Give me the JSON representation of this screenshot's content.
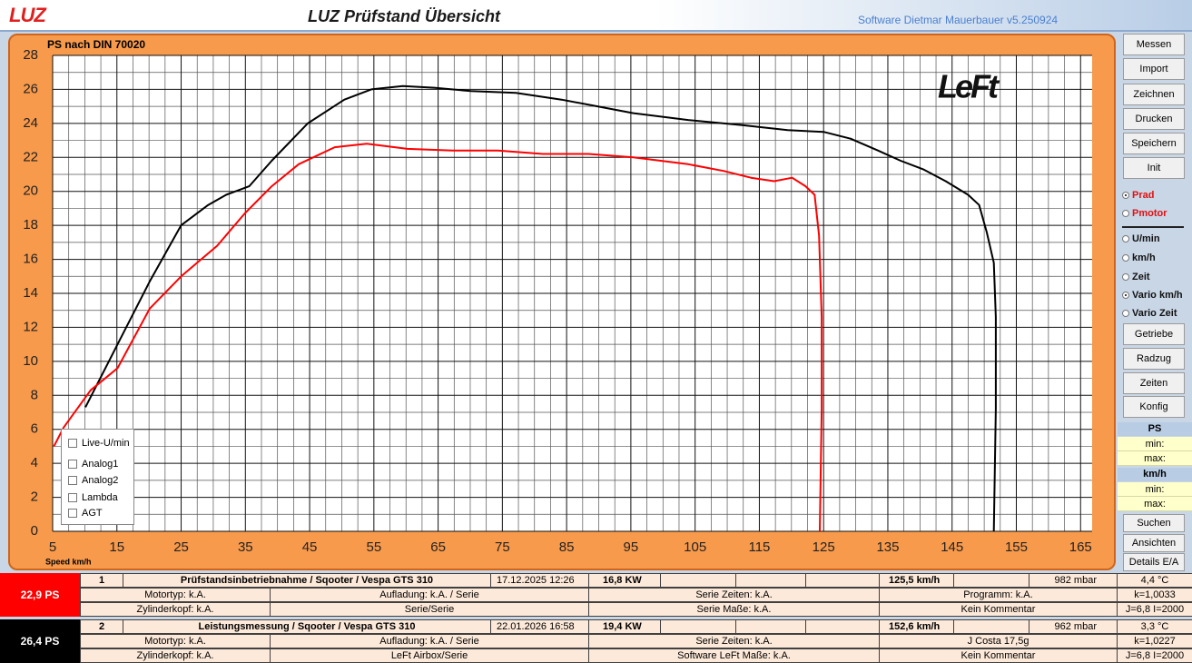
{
  "header": {
    "logo": "LUZ",
    "title": "LUZ Prüfstand  Übersicht",
    "software": "Software Dietmar Mauerbauer v5.250924"
  },
  "chart_data": {
    "type": "line",
    "title": "PS nach DIN 70020",
    "x_label": "Speed km/h",
    "watermark": "LeFt",
    "xlim": [
      5,
      166.8
    ],
    "xticks": [
      5,
      15,
      25,
      35,
      45,
      55,
      65,
      75,
      85,
      95,
      105,
      115,
      125,
      135,
      145,
      155,
      165
    ],
    "ylim": [
      0,
      28
    ],
    "yticks": [
      0,
      2,
      4,
      6,
      8,
      10,
      12,
      14,
      16,
      18,
      20,
      22,
      24,
      26,
      28
    ],
    "grid": true,
    "series": [
      {
        "color": "#000000",
        "x": [
          10.1,
          15.1,
          20.1,
          25,
          29.2,
          32,
          35.6,
          39.1,
          44.7,
          50.4,
          54.6,
          59.5,
          64.4,
          70.1,
          77.1,
          84.2,
          89.8,
          95.4,
          103.9,
          112.3,
          119.4,
          125,
          129.2,
          133.5,
          137,
          140.5,
          144,
          147.5,
          149.2,
          150.4,
          151.5,
          151.8,
          151.8,
          151.5
        ],
        "values": [
          7.3,
          11.0,
          14.7,
          18.0,
          19.2,
          19.8,
          20.3,
          21.8,
          24.0,
          25.4,
          26.0,
          26.2,
          26.1,
          25.9,
          25.8,
          25.4,
          25.0,
          24.6,
          24.2,
          23.9,
          23.6,
          23.5,
          23.1,
          22.4,
          21.8,
          21.3,
          20.6,
          19.8,
          19.2,
          17.6,
          15.8,
          12.6,
          7.2,
          0
        ]
      },
      {
        "color": "#ff0000",
        "x": [
          5.2,
          6.7,
          10.9,
          15.1,
          20.1,
          25,
          30.6,
          34.9,
          39.1,
          43.3,
          48.9,
          53.9,
          60.2,
          67.3,
          74.3,
          81.3,
          88.4,
          95.4,
          103.9,
          109.5,
          113.7,
          117.3,
          120.1,
          122.2,
          123.6,
          124.3,
          124.7,
          124.7,
          124.4
        ],
        "values": [
          5.0,
          6.1,
          8.3,
          9.6,
          13.1,
          15.0,
          16.8,
          18.7,
          20.3,
          21.6,
          22.6,
          22.8,
          22.5,
          22.4,
          22.4,
          22.2,
          22.2,
          22.0,
          21.6,
          21.2,
          20.8,
          20.6,
          20.8,
          20.3,
          19.8,
          17.4,
          12.6,
          7.2,
          0
        ]
      }
    ]
  },
  "checkboxes": [
    "Live-U/min",
    "Analog1",
    "Analog2",
    "Lambda",
    "AGT"
  ],
  "sidebar": {
    "buttons_top": [
      "Messen",
      "Import",
      "Zeichnen",
      "Drucken",
      "Speichern",
      "Init"
    ],
    "power_options": [
      {
        "label": "Prad",
        "checked": true
      },
      {
        "label": "Pmotor",
        "checked": false
      }
    ],
    "axis_options": [
      {
        "label": "U/min",
        "checked": false
      },
      {
        "label": "km/h",
        "checked": false
      },
      {
        "label": "Zeit",
        "checked": false
      },
      {
        "label": "Vario km/h",
        "checked": true
      },
      {
        "label": "Vario Zeit",
        "checked": false
      }
    ],
    "buttons_mid": [
      "Getriebe",
      "Radzug",
      "Zeiten",
      "Konfig"
    ],
    "ps": {
      "title": "PS",
      "min": "min:",
      "max": "max:"
    },
    "kmh": {
      "title": "km/h",
      "min": "min:",
      "max": "max:"
    },
    "buttons_bottom": [
      "Suchen",
      "Ansichten",
      "Details E/A"
    ]
  },
  "runs": [
    {
      "badge": "22,9  PS",
      "number": "1",
      "description": "Prüfstandsinbetriebnahme / Sqooter / Vespa GTS 310",
      "date": "17.12.2025 12:26",
      "power": "16,8  KW",
      "speed": "125,5 km/h",
      "pressure": "982  mbar",
      "temperature": "4,4 °C",
      "row2": [
        "Motortyp: k.A.",
        "Aufladung: k.A.  / Serie",
        "Serie  Zeiten: k.A.",
        "Programm: k.A.",
        "k=1,0033"
      ],
      "row3": [
        "Zylinderkopf: k.A.",
        "Serie/Serie",
        "Serie Maße: k.A.",
        "Kein Kommentar",
        "J=6,8 I=2000"
      ]
    },
    {
      "badge": "26,4  PS",
      "number": "2",
      "description": "Leistungsmessung / Sqooter / Vespa GTS 310",
      "date": "22.01.2026 16:58",
      "power": "19,4  KW",
      "speed": "152,6 km/h",
      "pressure": "962  mbar",
      "temperature": "3,3 °C",
      "row2": [
        "Motortyp: k.A.",
        "Aufladung: k.A.  / Serie",
        "Serie  Zeiten: k.A.",
        "J Costa 17,5g",
        "k=1,0227"
      ],
      "row3": [
        "Zylinderkopf: k.A.",
        "LeFt Airbox/Serie",
        "Software LeFt Maße: k.A.",
        "Kein Kommentar",
        "J=6,8 I=2000"
      ]
    }
  ]
}
